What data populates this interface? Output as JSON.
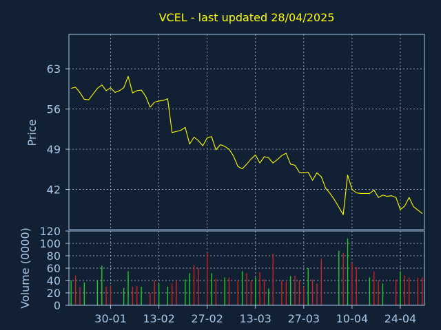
{
  "title": "VCEL - last updated 28/04/2025",
  "colors": {
    "background": "#112033",
    "title": "#ffff00",
    "axis_text": "#a8c8e8",
    "frame": "#a8c8e8",
    "grid": "#c8d8e8",
    "price_line": "#ffff00",
    "volume_up": "#22cc22",
    "volume_down": "#cc2222"
  },
  "chart_data": [
    {
      "type": "line",
      "ylabel": "Price",
      "ylim": [
        35,
        69
      ],
      "yticks": [
        63,
        56,
        49,
        42
      ],
      "x_date_ticks": [
        "30-01",
        "13-02",
        "27-02",
        "13-03",
        "27-03",
        "10-04",
        "24-04"
      ],
      "grid": true,
      "series": [
        {
          "values": [
            59.6,
            59.8,
            58.9,
            57.7,
            57.6,
            58.6,
            59.6,
            60.2,
            59.2,
            59.7,
            58.9,
            59.2,
            59.7,
            61.7,
            58.8,
            59.2,
            59.3,
            58.2,
            56.3,
            57.2,
            57.4,
            57.5,
            57.8,
            51.9,
            52.1,
            52.3,
            52.8,
            49.9,
            51.1,
            50.5,
            49.6,
            51.0,
            51.2,
            48.9,
            49.8,
            49.5,
            49.0,
            47.8,
            46.0,
            45.6,
            46.4,
            47.3,
            48.0,
            46.6,
            47.7,
            47.5,
            46.6,
            47.2,
            47.9,
            48.3,
            46.4,
            46.2,
            45.0,
            44.9,
            45.0,
            43.6,
            44.9,
            44.2,
            42.2,
            41.3,
            40.2,
            38.9,
            37.6,
            44.5,
            42.0,
            41.4,
            41.3,
            41.3,
            41.3,
            41.9,
            40.6,
            41.0,
            40.8,
            40.9,
            40.6,
            38.5,
            39.1,
            40.6,
            39.0,
            38.4,
            37.8
          ]
        }
      ]
    },
    {
      "type": "bar",
      "ylabel": "Volume (0000)",
      "ylim": [
        0,
        120
      ],
      "yticks": [
        0,
        20,
        40,
        60,
        80,
        100,
        120
      ],
      "grid": true,
      "series": [
        {
          "name": "up",
          "values": [
            40,
            0,
            0,
            37,
            0,
            0,
            40,
            64,
            0,
            0,
            0,
            0,
            28,
            55,
            0,
            0,
            30,
            0,
            0,
            0,
            35,
            0,
            30,
            0,
            0,
            0,
            42,
            52,
            0,
            0,
            0,
            0,
            52,
            0,
            0,
            45,
            0,
            0,
            0,
            55,
            0,
            0,
            45,
            0,
            0,
            27,
            0,
            0,
            0,
            0,
            47,
            0,
            0,
            0,
            60,
            0,
            0,
            0,
            0,
            0,
            0,
            88,
            0,
            108,
            0,
            0,
            0,
            0,
            45,
            0,
            0,
            35,
            0,
            0,
            0,
            55,
            0,
            0,
            0,
            0,
            0
          ],
          "color": "#22cc22"
        },
        {
          "name": "down",
          "values": [
            0,
            48,
            29,
            0,
            0,
            0,
            0,
            0,
            30,
            32,
            0,
            0,
            0,
            0,
            30,
            31,
            0,
            0,
            20,
            40,
            0,
            0,
            0,
            35,
            40,
            0,
            0,
            0,
            65,
            60,
            0,
            85,
            0,
            43,
            0,
            0,
            45,
            0,
            40,
            0,
            52,
            40,
            0,
            53,
            42,
            0,
            83,
            0,
            40,
            38,
            0,
            48,
            40,
            30,
            0,
            42,
            35,
            75,
            0,
            0,
            0,
            0,
            85,
            0,
            68,
            62,
            0,
            0,
            0,
            55,
            40,
            0,
            0,
            0,
            42,
            0,
            48,
            45,
            0,
            45,
            45
          ],
          "color": "#cc2222"
        }
      ]
    }
  ]
}
